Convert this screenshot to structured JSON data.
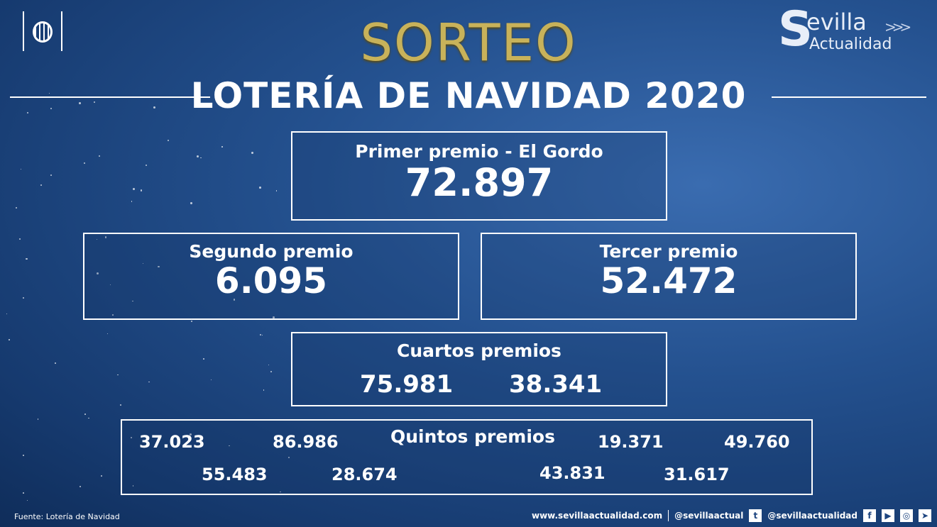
{
  "header": {
    "sorteo": "SORTEO",
    "title": "LOTERÍA DE NAVIDAD 2020"
  },
  "brand": {
    "s": "S",
    "evilla": "evilla",
    "actualidad": "Actualidad",
    ".com": ".com"
  },
  "primer": {
    "label": "Primer premio - El Gordo",
    "number": "72.897"
  },
  "segundo": {
    "label": "Segundo premio",
    "number": "6.095"
  },
  "tercer": {
    "label": "Tercer premio",
    "number": "52.472"
  },
  "cuartos": {
    "label": "Cuartos premios",
    "numbers": [
      "75.981",
      "38.341"
    ]
  },
  "quintos": {
    "label": "Quintos premios",
    "numbers": [
      "37.023",
      "86.986",
      "19.371",
      "49.760",
      "55.483",
      "28.674",
      "43.831",
      "31.617"
    ]
  },
  "footer": {
    "source": "Fuente: Lotería de Navidad",
    "website": "www.sevillaactualidad.com",
    "twitter": "@sevillaactual",
    "instagram": "@sevillaactualidad",
    "icons": [
      "twitter-icon",
      "facebook-icon",
      "youtube-icon",
      "instagram-icon",
      "telegram-icon"
    ]
  }
}
